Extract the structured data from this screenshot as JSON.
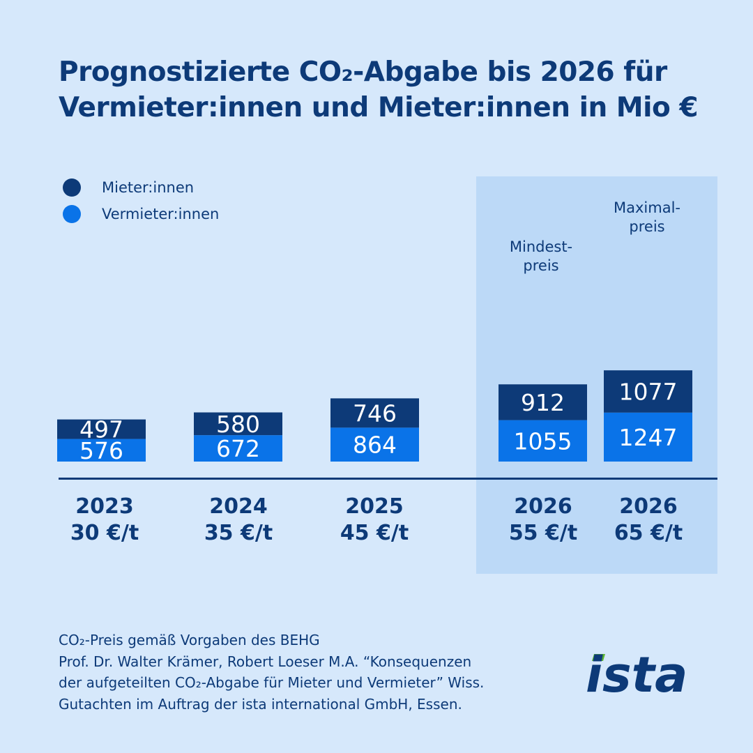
{
  "title_lines": [
    "Prognostizierte CO₂-Abgabe bis 2026 für",
    "Vermieter:innen und Mieter:innen in Mio €"
  ],
  "legend": [
    {
      "label": "Mieter:innen",
      "color": "#0d3a78"
    },
    {
      "label": "Vermieter:innen",
      "color": "#0a73e8"
    }
  ],
  "highlight_labels": {
    "min": [
      "Mindest-",
      "preis"
    ],
    "max": [
      "Maximal-",
      "preis"
    ]
  },
  "chart_data": {
    "type": "bar",
    "stacked": true,
    "categories": [
      "2023\n30 €/t",
      "2024\n35 €/t",
      "2025\n45 €/t",
      "2026\n55 €/t",
      "2026\n65 €/t"
    ],
    "series": [
      {
        "name": "Vermieter:innen",
        "color": "#0a73e8",
        "values": [
          576,
          672,
          864,
          1055,
          1247
        ]
      },
      {
        "name": "Mieter:innen",
        "color": "#0d3a78",
        "values": [
          497,
          580,
          746,
          912,
          1077
        ]
      }
    ],
    "xlabel": "",
    "ylabel": ""
  },
  "x_labels": [
    [
      "2023",
      "30 €/t"
    ],
    [
      "2024",
      "35 €/t"
    ],
    [
      "2025",
      "45 €/t"
    ],
    [
      "2026",
      "55 €/t"
    ],
    [
      "2026",
      "65 €/t"
    ]
  ],
  "footer_lines": [
    "CO₂-Preis gemäß Vorgaben des BEHG",
    "Prof. Dr. Walter Krämer, Robert Loeser M.A. “Konsequenzen",
    "der aufgeteilten CO₂-Abgabe für Mieter und Vermieter” Wiss.",
    "Gutachten im Auftrag der ista international GmbH, Essen."
  ],
  "logo_text": "ista"
}
